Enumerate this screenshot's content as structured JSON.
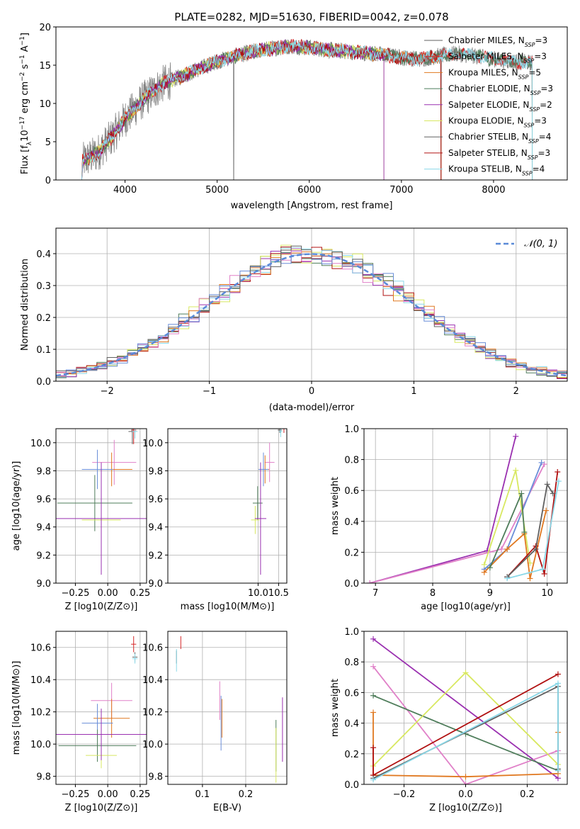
{
  "colors": {
    "chabrier_miles": "#6a6aaa",
    "salpeter_miles": "#d62728",
    "kroupa_miles": "#e07820",
    "chabrier_elodie": "#4e7c5a",
    "salpeter_elodie": "#9a30b0",
    "kroupa_elodie": "#d8e860",
    "chabrier_stelib": "#606060",
    "salpeter_stelib": "#b01010",
    "kroupa_stelib": "#8ad8e8",
    "data_spectrum": "#808080",
    "pink": "#e080c8",
    "blue": "#6a8ed8",
    "gaussian": "#5a8ad8"
  },
  "chart_data": [
    {
      "id": "spectrum",
      "type": "line",
      "title": "PLATE=0282, MJD=51630, FIBERID=0042, z=0.078",
      "xlabel": "wavelength [Angstrom, rest frame]",
      "ylabel_parts": [
        "Flux [f",
        "λ",
        "10",
        "−17",
        " erg cm",
        "−2",
        " s",
        "−1",
        " A",
        "−1",
        "]"
      ],
      "xlim": [
        3250,
        8800
      ],
      "ylim": [
        0,
        20
      ],
      "xticks": [
        4000,
        5000,
        6000,
        7000,
        8000
      ],
      "yticks": [
        0,
        5,
        10,
        15,
        20
      ],
      "legend": [
        {
          "label": "Chabrier MILES, N",
          "sub": "SSP",
          "n": "=3",
          "color_key": "chabrier_stelib"
        },
        {
          "label": "Salpeter MILES, N",
          "sub": "SSP",
          "n": "=3",
          "color_key": "salpeter_miles"
        },
        {
          "label": "Kroupa MILES, N",
          "sub": "SSP",
          "n": "=5",
          "color_key": "kroupa_miles"
        },
        {
          "label": "Chabrier ELODIE, N",
          "sub": "SSP",
          "n": "=3",
          "color_key": "chabrier_elodie"
        },
        {
          "label": "Salpeter ELODIE, N",
          "sub": "SSP",
          "n": "=2",
          "color_key": "salpeter_elodie"
        },
        {
          "label": "Kroupa ELODIE, N",
          "sub": "SSP",
          "n": "=3",
          "color_key": "kroupa_elodie"
        },
        {
          "label": "Chabrier STELIB, N",
          "sub": "SSP",
          "n": "=4",
          "color_key": "chabrier_stelib"
        },
        {
          "label": "Salpeter STELIB, N",
          "sub": "SSP",
          "n": "=3",
          "color_key": "salpeter_stelib"
        },
        {
          "label": "Kroupa STELIB, N",
          "sub": "SSP",
          "n": "=4",
          "color_key": "kroupa_stelib"
        }
      ],
      "continuum": {
        "x": [
          3550,
          3700,
          3850,
          4000,
          4200,
          4400,
          4600,
          4800,
          5000,
          5200,
          5400,
          5600,
          5800,
          6000,
          6200,
          6400,
          6600,
          6800,
          7000,
          7200,
          7400,
          7600,
          7800,
          8000,
          8200,
          8400
        ],
        "y": [
          2.5,
          3.5,
          5.5,
          8.0,
          10.5,
          12.5,
          13.5,
          14.5,
          15.5,
          16.2,
          16.8,
          17.2,
          17.5,
          17.3,
          17.0,
          16.8,
          16.6,
          16.4,
          16.0,
          15.8,
          16.2,
          16.5,
          16.2,
          15.8,
          15.5,
          15.3
        ]
      }
    },
    {
      "id": "histogram",
      "type": "area",
      "xlabel": "(data-model)/error",
      "ylabel": "Normed distribution",
      "xlim": [
        -2.5,
        2.5
      ],
      "ylim": [
        0,
        0.48
      ],
      "xticks": [
        -2,
        -1,
        0,
        1,
        2
      ],
      "yticks": [
        0.0,
        0.1,
        0.2,
        0.3,
        0.4
      ],
      "legend_label": "N(0, 1)",
      "bin_width": 0.1
    },
    {
      "id": "age_vs_Z",
      "type": "scatter",
      "xlabel": "Z [log10(Z/Z⊙)]",
      "ylabel": "age  [log10(age/yr)]",
      "xlim": [
        -0.4,
        0.3
      ],
      "ylim": [
        9.0,
        10.1
      ],
      "xticks": [
        -0.25,
        0.0,
        0.25
      ],
      "yticks": [
        9.0,
        9.2,
        9.4,
        9.6,
        9.8,
        10.0
      ],
      "points": [
        {
          "x": 0.2,
          "y": 10.09,
          "xerr": 0.02,
          "yerr": 0.1,
          "color_key": "salpeter_miles"
        },
        {
          "x": 0.19,
          "y": 10.08,
          "xerr": 0.03,
          "yerr": 0.09,
          "color_key": "chabrier_stelib"
        },
        {
          "x": 0.21,
          "y": 10.08,
          "xerr": 0.02,
          "yerr": 0.05,
          "color_key": "kroupa_stelib"
        },
        {
          "x": 0.05,
          "y": 9.86,
          "xerr": 0.17,
          "yerr": 0.16,
          "color_key": "pink"
        },
        {
          "x": 0.03,
          "y": 9.81,
          "xerr": 0.16,
          "yerr": 0.12,
          "color_key": "kroupa_miles"
        },
        {
          "x": -0.08,
          "y": 9.81,
          "xerr": 0.12,
          "yerr": 0.14,
          "color_key": "blue"
        },
        {
          "x": -0.1,
          "y": 9.57,
          "xerr": 0.29,
          "yerr": 0.2,
          "color_key": "chabrier_elodie"
        },
        {
          "x": -0.05,
          "y": 9.45,
          "xerr": 0.15,
          "yerr": 0.1,
          "color_key": "kroupa_elodie"
        },
        {
          "x": -0.05,
          "y": 9.46,
          "xerr": 0.35,
          "yerr": 0.4,
          "color_key": "salpeter_elodie"
        }
      ]
    },
    {
      "id": "age_vs_mass",
      "type": "scatter",
      "xlabel": "mass [log10(M/M⊙)]",
      "xlim": [
        7.8,
        10.7
      ],
      "ylim": [
        9.0,
        10.1
      ],
      "xticks": [
        8.0,
        8.5,
        9.0,
        9.5,
        10.0,
        10.5
      ],
      "visible_xticks": [
        10.0,
        10.5
      ],
      "yticks": [
        9.0,
        9.2,
        9.4,
        9.6,
        9.8,
        10.0
      ],
      "points": [
        {
          "x": 10.63,
          "y": 10.1,
          "xerr": 0.05,
          "yerr": 0.03,
          "color_key": "salpeter_miles"
        },
        {
          "x": 10.53,
          "y": 10.09,
          "xerr": 0.05,
          "yerr": 0.02,
          "color_key": "chabrier_stelib"
        },
        {
          "x": 10.55,
          "y": 10.08,
          "xerr": 0.04,
          "yerr": 0.04,
          "color_key": "kroupa_stelib"
        },
        {
          "x": 10.28,
          "y": 9.86,
          "xerr": 0.12,
          "yerr": 0.14,
          "color_key": "pink"
        },
        {
          "x": 10.17,
          "y": 9.81,
          "xerr": 0.1,
          "yerr": 0.1,
          "color_key": "kroupa_miles"
        },
        {
          "x": 10.13,
          "y": 9.81,
          "xerr": 0.12,
          "yerr": 0.12,
          "color_key": "blue"
        },
        {
          "x": 9.99,
          "y": 9.57,
          "xerr": 0.12,
          "yerr": 0.12,
          "color_key": "chabrier_elodie"
        },
        {
          "x": 9.93,
          "y": 9.45,
          "xerr": 0.1,
          "yerr": 0.1,
          "color_key": "kroupa_elodie"
        },
        {
          "x": 10.06,
          "y": 9.46,
          "xerr": 0.14,
          "yerr": 0.4,
          "color_key": "salpeter_elodie"
        }
      ]
    },
    {
      "id": "weight_vs_age",
      "type": "line",
      "xlabel": "age  [log10(age/yr)]",
      "ylabel": "mass weight",
      "xlim": [
        6.8,
        10.35
      ],
      "ylim": [
        0,
        1
      ],
      "xticks": [
        7,
        8,
        9,
        10
      ],
      "yticks": [
        0.0,
        0.2,
        0.4,
        0.6,
        0.8,
        1.0
      ],
      "series": [
        {
          "color_key": "salpeter_elodie",
          "x": [
            6.9,
            8.95,
            9.45
          ],
          "y": [
            0.0,
            0.21,
            0.95
          ]
        },
        {
          "color_key": "pink",
          "x": [
            6.9,
            9.2,
            9.95
          ],
          "y": [
            0.0,
            0.22,
            0.77
          ]
        },
        {
          "color_key": "blue",
          "x": [
            8.9,
            9.3,
            9.9
          ],
          "y": [
            0.09,
            0.22,
            0.78
          ]
        },
        {
          "color_key": "kroupa_elodie",
          "x": [
            8.9,
            9.45,
            9.7
          ],
          "y": [
            0.12,
            0.73,
            0.13
          ]
        },
        {
          "color_key": "kroupa_miles",
          "x": [
            8.9,
            9.3,
            9.6,
            9.7,
            9.98
          ],
          "y": [
            0.07,
            0.22,
            0.32,
            0.03,
            0.47
          ]
        },
        {
          "color_key": "chabrier_elodie",
          "x": [
            9.0,
            9.55,
            9.6
          ],
          "y": [
            0.1,
            0.58,
            0.33
          ]
        },
        {
          "color_key": "salpeter_stelib",
          "x": [
            9.3,
            9.8,
            9.95,
            10.18
          ],
          "y": [
            0.04,
            0.24,
            0.06,
            0.72
          ]
        },
        {
          "color_key": "chabrier_stelib",
          "x": [
            9.3,
            9.8,
            10.0,
            10.1
          ],
          "y": [
            0.04,
            0.22,
            0.64,
            0.58
          ]
        },
        {
          "color_key": "kroupa_stelib",
          "x": [
            9.3,
            9.92,
            10.2
          ],
          "y": [
            0.03,
            0.09,
            0.66
          ]
        }
      ]
    },
    {
      "id": "mass_vs_Z",
      "type": "scatter",
      "xlabel": "Z [log10(Z/Z⊙)]",
      "ylabel": "mass [log10(M/M⊙)]",
      "xlim": [
        -0.4,
        0.3
      ],
      "ylim": [
        9.75,
        10.7
      ],
      "xticks": [
        -0.25,
        0.0,
        0.25
      ],
      "yticks": [
        9.8,
        10.0,
        10.2,
        10.4,
        10.6
      ],
      "points": [
        {
          "x": 0.2,
          "y": 10.62,
          "xerr": 0.02,
          "yerr": 0.05,
          "color_key": "salpeter_miles"
        },
        {
          "x": 0.21,
          "y": 10.54,
          "xerr": 0.02,
          "yerr": 0.03,
          "color_key": "chabrier_stelib"
        },
        {
          "x": 0.21,
          "y": 10.53,
          "xerr": 0.02,
          "yerr": 0.03,
          "color_key": "kroupa_stelib"
        },
        {
          "x": 0.03,
          "y": 10.27,
          "xerr": 0.16,
          "yerr": 0.11,
          "color_key": "pink"
        },
        {
          "x": 0.03,
          "y": 10.16,
          "xerr": 0.14,
          "yerr": 0.12,
          "color_key": "kroupa_miles"
        },
        {
          "x": -0.08,
          "y": 10.13,
          "xerr": 0.12,
          "yerr": 0.12,
          "color_key": "blue"
        },
        {
          "x": -0.08,
          "y": 9.99,
          "xerr": 0.3,
          "yerr": 0.1,
          "color_key": "chabrier_elodie"
        },
        {
          "x": -0.05,
          "y": 9.93,
          "xerr": 0.12,
          "yerr": 0.08,
          "color_key": "kroupa_elodie"
        },
        {
          "x": -0.05,
          "y": 10.06,
          "xerr": 0.35,
          "yerr": 0.16,
          "color_key": "salpeter_elodie"
        }
      ]
    },
    {
      "id": "mass_vs_ebv",
      "type": "scatter",
      "xlabel": "E(B-V)",
      "xlim": [
        0.02,
        0.295
      ],
      "ylim": [
        9.75,
        10.7
      ],
      "xticks": [
        0.1,
        0.2
      ],
      "yticks": [
        9.8,
        10.0,
        10.2,
        10.4,
        10.6
      ],
      "points": [
        {
          "x": 0.05,
          "y": 10.63,
          "xerr": 0.0,
          "yerr": 0.04,
          "color_key": "salpeter_miles"
        },
        {
          "x": 0.04,
          "y": 10.54,
          "xerr": 0.0,
          "yerr": 0.04,
          "color_key": "chabrier_stelib"
        },
        {
          "x": 0.04,
          "y": 10.52,
          "xerr": 0.0,
          "yerr": 0.07,
          "color_key": "kroupa_stelib"
        },
        {
          "x": 0.14,
          "y": 10.27,
          "xerr": 0.0,
          "yerr": 0.12,
          "color_key": "pink"
        },
        {
          "x": 0.145,
          "y": 10.16,
          "xerr": 0.0,
          "yerr": 0.12,
          "color_key": "kroupa_miles"
        },
        {
          "x": 0.143,
          "y": 10.13,
          "xerr": 0.0,
          "yerr": 0.17,
          "color_key": "blue"
        },
        {
          "x": 0.27,
          "y": 9.99,
          "xerr": 0.0,
          "yerr": 0.16,
          "color_key": "chabrier_elodie"
        },
        {
          "x": 0.27,
          "y": 9.93,
          "xerr": 0.0,
          "yerr": 0.17,
          "color_key": "kroupa_elodie"
        },
        {
          "x": 0.285,
          "y": 10.09,
          "xerr": 0.0,
          "yerr": 0.2,
          "color_key": "salpeter_elodie"
        }
      ]
    },
    {
      "id": "weight_vs_Z",
      "type": "line",
      "xlabel": "Z [log10(Z/Z⊙)]",
      "ylabel": "mass weight",
      "xlim": [
        -0.33,
        0.33
      ],
      "ylim": [
        0,
        1
      ],
      "xticks": [
        -0.2,
        0.0,
        0.2
      ],
      "yticks": [
        0.0,
        0.2,
        0.4,
        0.6,
        0.8,
        1.0
      ],
      "series": [
        {
          "color_key": "salpeter_elodie",
          "x": [
            -0.3,
            0.3
          ],
          "y": [
            0.95,
            0.04
          ]
        },
        {
          "color_key": "pink",
          "x": [
            -0.3,
            0.0,
            0.3
          ],
          "y": [
            0.77,
            0.0,
            0.22
          ]
        },
        {
          "color_key": "chabrier_elodie",
          "x": [
            -0.3,
            0.0,
            0.3
          ],
          "y": [
            0.58,
            0.33,
            0.09
          ]
        },
        {
          "color_key": "kroupa_elodie",
          "x": [
            -0.3,
            0.0,
            0.3
          ],
          "y": [
            0.12,
            0.73,
            0.13
          ]
        },
        {
          "color_key": "kroupa_miles",
          "x": [
            -0.3,
            -0.3,
            0.0,
            0.3,
            0.3
          ],
          "y": [
            0.47,
            0.06,
            0.05,
            0.07,
            0.34
          ]
        },
        {
          "color_key": "salpeter_stelib",
          "x": [
            -0.3,
            -0.3,
            0.3
          ],
          "y": [
            0.24,
            0.06,
            0.72
          ]
        },
        {
          "color_key": "chabrier_stelib",
          "x": [
            -0.3,
            0.3,
            0.3
          ],
          "y": [
            0.04,
            0.64,
            0.1
          ]
        },
        {
          "color_key": "kroupa_stelib",
          "x": [
            -0.3,
            0.3,
            0.3
          ],
          "y": [
            0.03,
            0.66,
            0.09
          ]
        }
      ]
    }
  ]
}
